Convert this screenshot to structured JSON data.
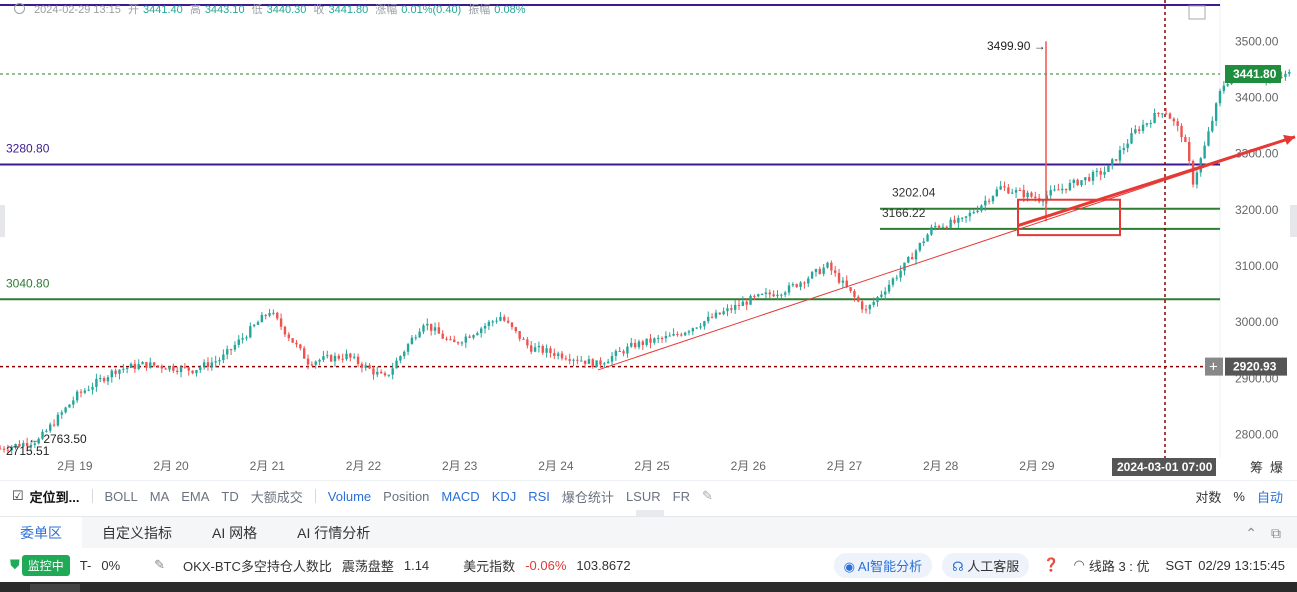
{
  "ohlc": {
    "time": "2024-02-29 13:15",
    "open_label": "开",
    "open": "3441.40",
    "high_label": "高",
    "high": "3443.10",
    "low_label": "低",
    "low": "3440.30",
    "close_label": "收",
    "close": "3441.80",
    "change_label": "涨幅",
    "change": "0.01%(0.40)",
    "amp_label": "振幅",
    "amp": "0.08%"
  },
  "chart_data": {
    "type": "candlestick",
    "yticks": [
      "3500.00",
      "3400.00",
      "3300.00",
      "3200.00",
      "3100.00",
      "3000.00",
      "2900.00",
      "2800.00"
    ],
    "xticks": [
      "2月 19",
      "2月 20",
      "2月 21",
      "2月 22",
      "2月 23",
      "2月 24",
      "2月 25",
      "2月 26",
      "2月 27",
      "2月 28",
      "2月 29"
    ],
    "ylim": [
      2760,
      3570
    ],
    "price_tag": "3441.80",
    "crosshair_price": "2920.93",
    "crosshair_time": "2024-03-01 07:00",
    "line_labels": {
      "purple": "3280.80",
      "green": "3040.80"
    },
    "annotations": {
      "high": "3499.90",
      "low1": "2763.50",
      "low2": "2715.51",
      "sup1": "3202.04",
      "sup2": "3166.22"
    },
    "right_labels": [
      "筹",
      "爆"
    ],
    "close_path": [
      [
        0,
        2775
      ],
      [
        0.4,
        2790
      ],
      [
        0.8,
        2870
      ],
      [
        1.2,
        2915
      ],
      [
        1.5,
        2925
      ],
      [
        2.0,
        2915
      ],
      [
        2.3,
        2935
      ],
      [
        2.8,
        3020
      ],
      [
        3.2,
        2930
      ],
      [
        3.6,
        2940
      ],
      [
        4.0,
        2900
      ],
      [
        4.4,
        3000
      ],
      [
        4.7,
        2960
      ],
      [
        5.2,
        3010
      ],
      [
        5.5,
        2955
      ],
      [
        6.0,
        2935
      ],
      [
        6.2,
        2925
      ],
      [
        6.6,
        2960
      ],
      [
        7.0,
        2975
      ],
      [
        7.3,
        3000
      ],
      [
        7.8,
        3040
      ],
      [
        8.2,
        3060
      ],
      [
        8.6,
        3100
      ],
      [
        8.8,
        3060
      ],
      [
        9.0,
        3020
      ],
      [
        9.4,
        3100
      ],
      [
        9.7,
        3170
      ],
      [
        10.0,
        3180
      ],
      [
        10.4,
        3240
      ],
      [
        10.8,
        3220
      ],
      [
        11.2,
        3250
      ],
      [
        11.5,
        3270
      ],
      [
        11.8,
        3340
      ],
      [
        12.1,
        3380
      ],
      [
        12.3,
        3330
      ],
      [
        12.4,
        3250
      ],
      [
        12.5,
        3300
      ],
      [
        12.7,
        3420
      ],
      [
        12.9,
        3450
      ],
      [
        13.2,
        3430
      ],
      [
        13.4,
        3441.8
      ]
    ]
  },
  "toolbar": {
    "locate": "定位到...",
    "items": [
      "BOLL",
      "MA",
      "EMA",
      "TD",
      "大额成交"
    ],
    "items2": [
      "Volume",
      "Position",
      "MACD",
      "KDJ",
      "RSI",
      "爆仓统计",
      "LSUR",
      "FR"
    ],
    "right": [
      "对数",
      "%",
      "自动"
    ]
  },
  "panel": {
    "tabs": [
      "委单区",
      "自定义指标",
      "AI 网格",
      "AI 行情分析"
    ]
  },
  "status": {
    "monitor": "监控中",
    "lead": "T-",
    "pct": "0%",
    "ratio_name": "OKX-BTC多空持仓人数比",
    "ratio_state": "震荡盘整",
    "ratio_value": "1.14",
    "usd_name": "美元指数",
    "usd_change": "-0.06%",
    "usd_value": "103.8672",
    "ai": "AI智能分析",
    "service": "人工客服",
    "line": "线路 3 : 优",
    "tz": "SGT",
    "time": "02/29 13:15:45"
  },
  "colors": {
    "up": "#26a69a",
    "down": "#ef5350",
    "purple": "#3d1a8f",
    "green": "#2e7d32",
    "red": "#e53935",
    "dark_red": "#8b0000",
    "price_tag": "#1e8e3e"
  }
}
